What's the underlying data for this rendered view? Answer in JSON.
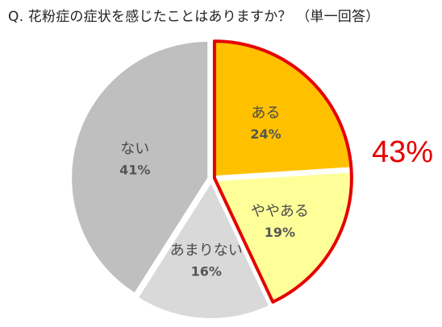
{
  "question": "Q. 花粉症の症状を感じたことはありますか？ （単一回答）",
  "chart_data": {
    "type": "pie",
    "title": "Q. 花粉症の症状を感じたことはありますか？ （単一回答）",
    "start_angle_deg": 0,
    "direction": "clockwise",
    "slices": [
      {
        "label": "ある",
        "value": 24,
        "value_label": "24%",
        "color": "#ffc000",
        "highlighted": true
      },
      {
        "label": "ややある",
        "value": 19,
        "value_label": "19%",
        "color": "#ffff99",
        "highlighted": true
      },
      {
        "label": "あまりない",
        "value": 16,
        "value_label": "16%",
        "color": "#d9d9d9",
        "highlighted": false
      },
      {
        "label": "ない",
        "value": 41,
        "value_label": "41%",
        "color": "#bfbfbf",
        "highlighted": false
      }
    ],
    "highlight": {
      "label": "43%",
      "value": 43,
      "outline_color": "#e60000",
      "text_color": "#e60000"
    }
  }
}
